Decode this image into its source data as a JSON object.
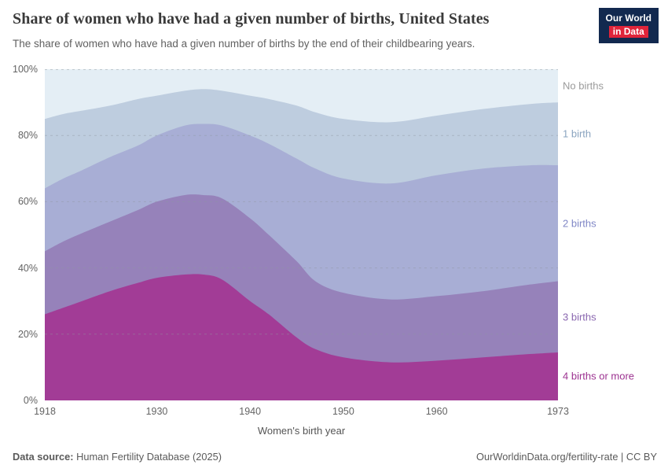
{
  "header": {
    "title": "Share of women who have had a given number of births, United States",
    "subtitle": "The share of women who have had a given number of births by the end of their childbearing years."
  },
  "logo": {
    "line1": "Our World",
    "line2": "in Data",
    "bg_color": "#12294f",
    "accent_color": "#e0243a"
  },
  "footer": {
    "source_label": "Data source:",
    "source_value": "Human Fertility Database (2025)",
    "right_text": "OurWorldinData.org/fertility-rate | CC BY"
  },
  "chart_data": {
    "type": "area",
    "stacked": true,
    "unit": "%",
    "title": "Share of women who have had a given number of births, United States",
    "xlabel": "Women's birth year",
    "ylabel": "",
    "xlim": [
      1918,
      1973
    ],
    "ylim": [
      0,
      100
    ],
    "grid": "dashed-horizontal",
    "legend_position": "right",
    "xticks": [
      1918,
      1930,
      1940,
      1950,
      1960,
      1973
    ],
    "yticks": [
      0,
      20,
      40,
      60,
      80,
      100
    ],
    "x": [
      1918,
      1920,
      1922,
      1925,
      1928,
      1930,
      1933,
      1935,
      1937,
      1940,
      1942,
      1945,
      1947,
      1950,
      1955,
      1960,
      1965,
      1970,
      1973
    ],
    "series": [
      {
        "name": "4 births or more",
        "color": "#a23c96",
        "label_color": "#9c3290",
        "values": [
          26,
          28,
          30,
          33,
          35.5,
          37,
          38,
          38,
          36.5,
          30,
          26,
          19,
          15.5,
          13,
          11.5,
          12,
          13,
          14,
          14.5
        ]
      },
      {
        "name": "3 births",
        "color": "#9682ba",
        "label_color": "#8a67b0",
        "values": [
          19,
          20,
          20.5,
          21,
          22,
          23,
          24,
          24,
          24.5,
          25,
          24,
          23,
          20.5,
          19.5,
          19,
          19.5,
          20,
          21,
          21.5
        ]
      },
      {
        "name": "2 births",
        "color": "#a8aed5",
        "label_color": "#8087c6",
        "values": [
          19,
          19,
          19,
          19.5,
          19.5,
          20,
          21,
          21.5,
          22,
          25,
          27.5,
          31,
          34,
          34.5,
          35,
          36.5,
          37,
          36,
          35
        ]
      },
      {
        "name": "1 birth",
        "color": "#becddf",
        "label_color": "#8aa4bf",
        "values": [
          21,
          19.5,
          18,
          15.5,
          14,
          12,
          10.5,
          10.5,
          10.5,
          12,
          13.5,
          16,
          17,
          18,
          18.5,
          18,
          18,
          18.5,
          19
        ]
      },
      {
        "name": "No births",
        "color": "#e4eef5",
        "label_color": "#9a9a9a",
        "values": [
          15,
          13.5,
          12.5,
          11,
          9,
          8,
          6.5,
          6,
          6.5,
          8,
          9,
          11,
          13,
          15,
          16,
          14,
          12,
          10.5,
          10
        ]
      }
    ]
  }
}
